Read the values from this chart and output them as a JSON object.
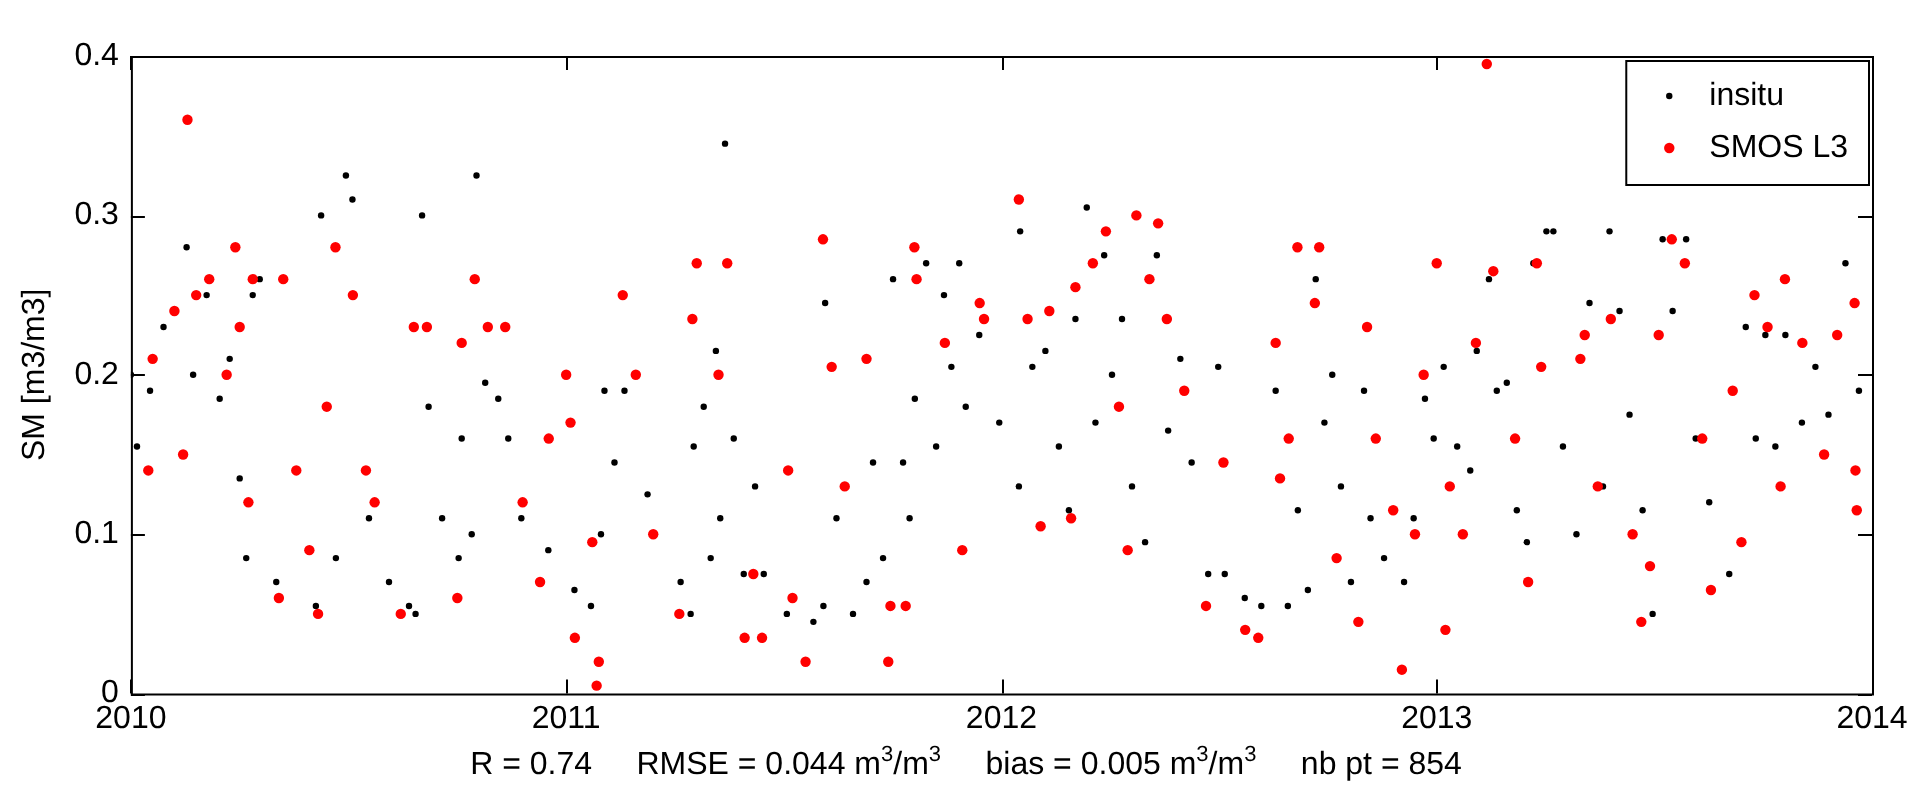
{
  "chart_data": {
    "type": "scatter",
    "ylabel": "SM [m3/m3]",
    "xlim": [
      2010,
      2014
    ],
    "xticks": [
      2010,
      2011,
      2012,
      2013,
      2014
    ],
    "ylim": [
      0,
      0.4
    ],
    "yticks": [
      0,
      0.1,
      0.2,
      0.3,
      0.4
    ],
    "grid": false,
    "legend": "top right",
    "marker": "circle",
    "annotations": [
      "R = 0.74     RMSE = 0.044 m$^{3}$/m$^{3}$     bias = 0.005 m$^{3}$/m$^{3}$     nb pt = 854"
    ],
    "series": [
      {
        "name": "insitu",
        "color": "#000000",
        "x": [
          2010.0,
          2010.014,
          2010.044,
          2010.075,
          2010.128,
          2010.143,
          2010.174,
          2010.204,
          2010.227,
          2010.25,
          2010.265,
          2010.28,
          2010.296,
          2010.334,
          2010.425,
          2010.437,
          2010.471,
          2010.494,
          2010.509,
          2010.547,
          2010.593,
          2010.639,
          2010.654,
          2010.669,
          2010.684,
          2010.715,
          2010.753,
          2010.76,
          2010.783,
          2010.794,
          2010.814,
          2010.844,
          2010.867,
          2010.897,
          2010.959,
          2011.019,
          2011.057,
          2011.08,
          2011.088,
          2011.111,
          2011.134,
          2011.187,
          2011.263,
          2011.286,
          2011.293,
          2011.316,
          2011.332,
          2011.344,
          2011.354,
          2011.365,
          2011.385,
          2011.408,
          2011.434,
          2011.454,
          2011.507,
          2011.568,
          2011.591,
          2011.595,
          2011.621,
          2011.659,
          2011.69,
          2011.705,
          2011.728,
          2011.751,
          2011.774,
          2011.789,
          2011.801,
          2011.827,
          2011.85,
          2011.868,
          2011.885,
          2011.903,
          2011.918,
          2011.949,
          2011.995,
          2012.04,
          2012.043,
          2012.071,
          2012.101,
          2012.132,
          2012.155,
          2012.17,
          2012.196,
          2012.216,
          2012.236,
          2012.254,
          2012.277,
          2012.3,
          2012.33,
          2012.357,
          2012.383,
          2012.411,
          2012.437,
          2012.475,
          2012.498,
          2012.513,
          2012.559,
          2012.597,
          2012.63,
          2012.658,
          2012.681,
          2012.704,
          2012.722,
          2012.742,
          2012.76,
          2012.78,
          2012.803,
          2012.833,
          2012.848,
          2012.879,
          2012.925,
          2012.947,
          2012.973,
          2012.993,
          2013.016,
          2013.047,
          2013.077,
          2013.092,
          2013.12,
          2013.138,
          2013.161,
          2013.184,
          2013.207,
          2013.222,
          2013.252,
          2013.268,
          2013.29,
          2013.321,
          2013.351,
          2013.382,
          2013.397,
          2013.42,
          2013.443,
          2013.473,
          2013.496,
          2013.519,
          2013.542,
          2013.573,
          2013.595,
          2013.626,
          2013.672,
          2013.71,
          2013.733,
          2013.755,
          2013.778,
          2013.801,
          2013.839,
          2013.87,
          2013.9,
          2013.939,
          2013.97
        ],
        "values": [
          0.2,
          0.155,
          0.19,
          0.23,
          0.28,
          0.2,
          0.25,
          0.185,
          0.21,
          0.135,
          0.085,
          0.25,
          0.26,
          0.07,
          0.055,
          0.3,
          0.085,
          0.325,
          0.31,
          0.11,
          0.07,
          0.055,
          0.05,
          0.3,
          0.18,
          0.11,
          0.085,
          0.16,
          0.1,
          0.325,
          0.195,
          0.185,
          0.16,
          0.11,
          0.09,
          0.065,
          0.055,
          0.1,
          0.19,
          0.145,
          0.19,
          0.125,
          0.07,
          0.05,
          0.155,
          0.18,
          0.085,
          0.215,
          0.11,
          0.345,
          0.16,
          0.075,
          0.13,
          0.075,
          0.05,
          0.045,
          0.055,
          0.245,
          0.11,
          0.05,
          0.07,
          0.145,
          0.085,
          0.26,
          0.145,
          0.11,
          0.185,
          0.27,
          0.155,
          0.25,
          0.205,
          0.27,
          0.18,
          0.225,
          0.17,
          0.13,
          0.29,
          0.205,
          0.215,
          0.155,
          0.115,
          0.235,
          0.305,
          0.17,
          0.275,
          0.2,
          0.235,
          0.13,
          0.095,
          0.275,
          0.165,
          0.21,
          0.145,
          0.075,
          0.205,
          0.075,
          0.06,
          0.055,
          0.19,
          0.055,
          0.115,
          0.065,
          0.26,
          0.17,
          0.2,
          0.13,
          0.07,
          0.19,
          0.11,
          0.085,
          0.07,
          0.11,
          0.185,
          0.16,
          0.205,
          0.155,
          0.14,
          0.215,
          0.26,
          0.19,
          0.195,
          0.115,
          0.095,
          0.27,
          0.29,
          0.29,
          0.155,
          0.1,
          0.245,
          0.13,
          0.29,
          0.24,
          0.175,
          0.115,
          0.05,
          0.285,
          0.24,
          0.285,
          0.16,
          0.12,
          0.075,
          0.23,
          0.16,
          0.225,
          0.155,
          0.225,
          0.17,
          0.205,
          0.175,
          0.27,
          0.19
        ]
      },
      {
        "name": "SMOS L3",
        "color": "#ff0000",
        "x": [
          2010.04,
          2010.05,
          2010.1,
          2010.13,
          2010.12,
          2010.15,
          2010.18,
          2010.24,
          2010.22,
          2010.25,
          2010.27,
          2010.28,
          2010.34,
          2010.35,
          2010.38,
          2010.41,
          2010.43,
          2010.45,
          2010.47,
          2010.51,
          2010.54,
          2010.56,
          2010.62,
          2010.65,
          2010.68,
          2010.75,
          2010.76,
          2010.79,
          2010.82,
          2010.86,
          2010.9,
          2010.94,
          2010.96,
          2011.0,
          2011.01,
          2011.02,
          2011.06,
          2011.07,
          2011.075,
          2011.13,
          2011.16,
          2011.2,
          2011.26,
          2011.3,
          2011.29,
          2011.37,
          2011.35,
          2011.41,
          2011.43,
          2011.45,
          2011.51,
          2011.52,
          2011.55,
          2011.59,
          2011.61,
          2011.64,
          2011.69,
          2011.74,
          2011.745,
          2011.78,
          2011.8,
          2011.805,
          2011.87,
          2011.91,
          2011.95,
          2011.96,
          2012.04,
          2012.06,
          2012.09,
          2012.11,
          2012.16,
          2012.17,
          2012.21,
          2012.24,
          2012.27,
          2012.29,
          2012.31,
          2012.34,
          2012.36,
          2012.38,
          2012.42,
          2012.47,
          2012.51,
          2012.56,
          2012.59,
          2012.63,
          2012.64,
          2012.66,
          2012.68,
          2012.73,
          2012.72,
          2012.77,
          2012.82,
          2012.84,
          2012.86,
          2012.9,
          2012.92,
          2012.95,
          2012.97,
          2013.0,
          2013.02,
          2013.03,
          2013.06,
          2013.09,
          2013.115,
          2013.13,
          2013.18,
          2013.21,
          2013.23,
          2013.24,
          2013.33,
          2013.34,
          2013.37,
          2013.4,
          2013.45,
          2013.47,
          2013.49,
          2013.51,
          2013.54,
          2013.57,
          2013.61,
          2013.63,
          2013.68,
          2013.7,
          2013.73,
          2013.76,
          2013.79,
          2013.8,
          2013.84,
          2013.89,
          2013.92,
          2013.96,
          2013.962,
          2013.965
        ],
        "values": [
          0.14,
          0.21,
          0.24,
          0.36,
          0.15,
          0.25,
          0.26,
          0.28,
          0.2,
          0.23,
          0.12,
          0.26,
          0.06,
          0.26,
          0.14,
          0.09,
          0.05,
          0.18,
          0.28,
          0.25,
          0.14,
          0.12,
          0.05,
          0.23,
          0.23,
          0.06,
          0.22,
          0.26,
          0.23,
          0.23,
          0.12,
          0.07,
          0.16,
          0.2,
          0.17,
          0.035,
          0.095,
          0.005,
          0.02,
          0.25,
          0.2,
          0.1,
          0.05,
          0.27,
          0.235,
          0.27,
          0.2,
          0.035,
          0.075,
          0.035,
          0.14,
          0.06,
          0.02,
          0.285,
          0.205,
          0.13,
          0.21,
          0.02,
          0.055,
          0.055,
          0.28,
          0.26,
          0.22,
          0.09,
          0.245,
          0.235,
          0.31,
          0.235,
          0.105,
          0.24,
          0.11,
          0.255,
          0.27,
          0.29,
          0.18,
          0.09,
          0.3,
          0.26,
          0.295,
          0.235,
          0.19,
          0.055,
          0.145,
          0.04,
          0.035,
          0.22,
          0.135,
          0.16,
          0.28,
          0.28,
          0.245,
          0.085,
          0.045,
          0.23,
          0.16,
          0.115,
          0.015,
          0.1,
          0.2,
          0.27,
          0.04,
          0.13,
          0.1,
          0.22,
          0.395,
          0.265,
          0.16,
          0.07,
          0.27,
          0.205,
          0.21,
          0.225,
          0.13,
          0.235,
          0.1,
          0.045,
          0.08,
          0.225,
          0.285,
          0.27,
          0.16,
          0.065,
          0.19,
          0.095,
          0.25,
          0.23,
          0.13,
          0.26,
          0.22,
          0.15,
          0.225,
          0.245,
          0.14,
          0.115
        ]
      }
    ]
  }
}
